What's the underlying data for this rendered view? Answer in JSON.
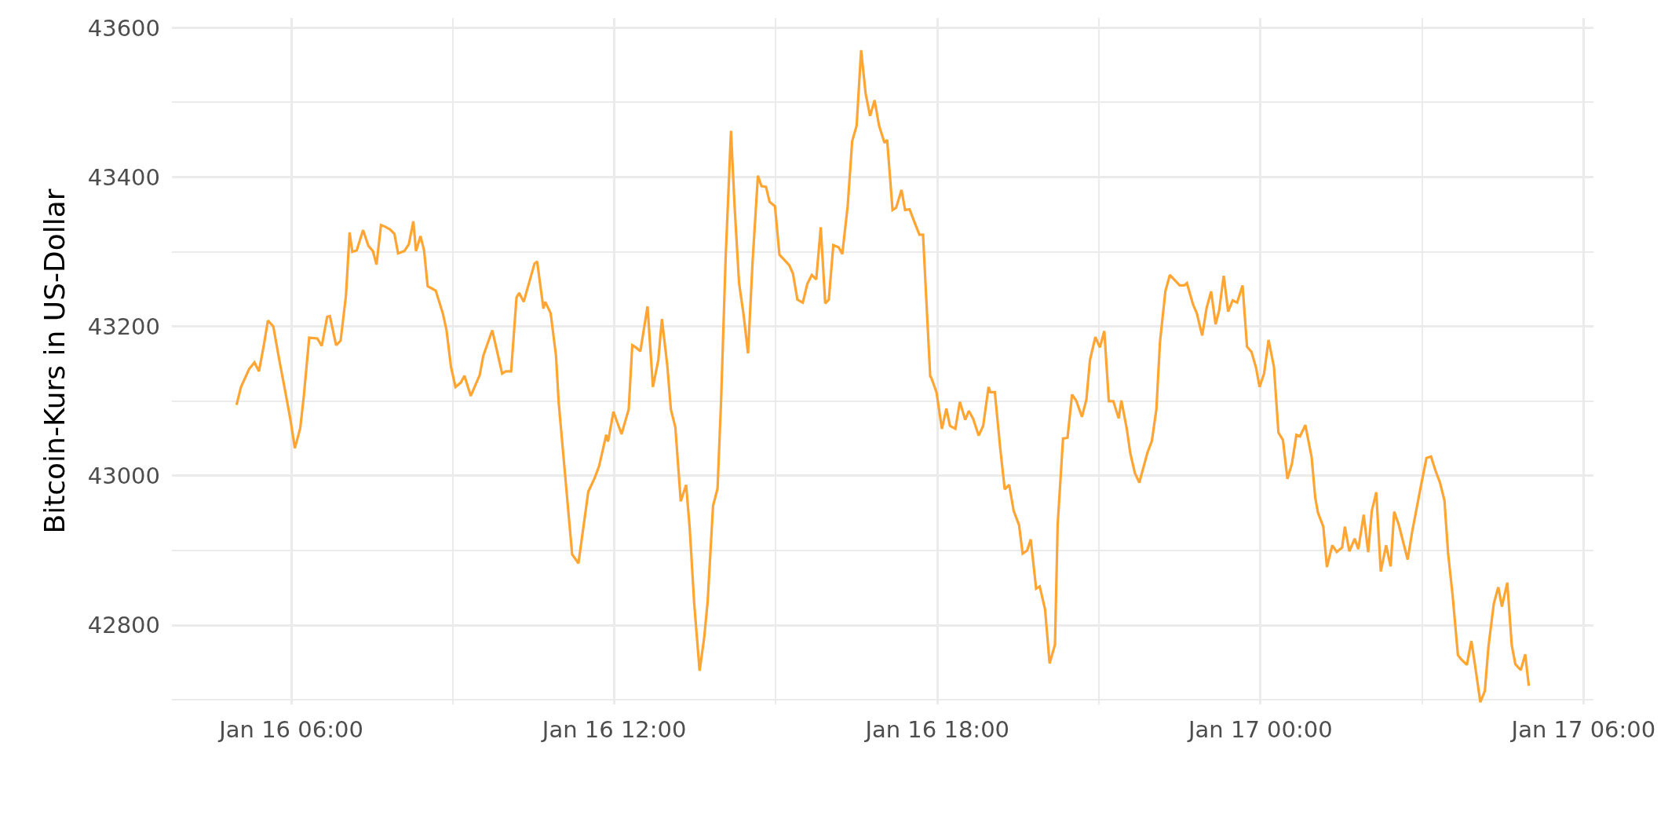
{
  "chart_data": {
    "type": "line",
    "ylabel": "Bitcoin-Kurs in US-Dollar",
    "x": [
      "--01-16T04:59",
      "--01-16T05:04",
      "--01-16T05:13",
      "--01-16T05:19",
      "--01-16T05:24",
      "--01-16T05:29",
      "--01-16T05:34",
      "--01-16T05:40",
      "--01-16T05:47",
      "--01-16T05:53",
      "--01-16T05:59",
      "--01-16T06:04",
      "--01-16T06:10",
      "--01-16T06:14",
      "--01-16T06:20",
      "--01-16T06:29",
      "--01-16T06:34",
      "--01-16T06:40",
      "--01-16T06:43",
      "--01-16T06:50",
      "--01-16T06:55",
      "--01-16T07:01",
      "--01-16T07:05",
      "--01-16T07:08",
      "--01-16T07:13",
      "--01-16T07:20",
      "--01-16T07:26",
      "--01-16T07:31",
      "--01-16T07:35",
      "--01-16T07:40",
      "--01-16T07:44",
      "--01-16T07:50",
      "--01-16T07:55",
      "--01-16T07:59",
      "--01-16T08:06",
      "--01-16T08:11",
      "--01-16T08:16",
      "--01-16T08:19",
      "--01-16T08:24",
      "--01-16T08:28",
      "--01-16T08:32",
      "--01-16T08:41",
      "--01-16T08:49",
      "--01-16T08:53",
      "--01-16T08:58",
      "--01-16T09:03",
      "--01-16T09:09",
      "--01-16T09:13",
      "--01-16T09:20",
      "--01-16T09:30",
      "--01-16T09:34",
      "--01-16T09:44",
      "--01-16T09:55",
      "--01-16T09:59",
      "--01-16T10:05",
      "--01-16T10:11",
      "--01-16T10:14",
      "--01-16T10:19",
      "--01-16T10:31",
      "--01-16T10:34",
      "--01-16T10:41",
      "--01-16T10:43",
      "--01-16T10:49",
      "--01-16T10:55",
      "--01-16T10:58",
      "--01-16T11:13",
      "--01-16T11:20",
      "--01-16T11:31",
      "--01-16T11:38",
      "--01-16T11:43",
      "--01-16T11:51",
      "--01-16T11:53",
      "--01-16T11:59",
      "--01-16T12:08",
      "--01-16T12:16",
      "--01-16T12:20",
      "--01-16T12:24",
      "--01-16T12:29",
      "--01-16T12:37",
      "--01-16T12:43",
      "--01-16T12:49",
      "--01-16T12:53",
      "--01-16T12:59",
      "--01-16T13:03",
      "--01-16T13:08",
      "--01-16T13:14",
      "--01-16T13:20",
      "--01-16T13:24",
      "--01-16T13:29",
      "--01-16T13:35",
      "--01-16T13:40",
      "--01-16T13:44",
      "--01-16T13:50",
      "--01-16T13:55",
      "--01-16T13:59",
      "--01-16T14:04",
      "--01-16T14:10",
      "--01-16T14:14",
      "--01-16T14:19",
      "--01-16T14:24",
      "--01-16T14:29",
      "--01-16T14:34",
      "--01-16T14:40",
      "--01-16T14:44",
      "--01-16T14:49",
      "--01-16T14:53",
      "--01-16T14:59",
      "--01-16T15:04",
      "--01-16T15:08",
      "--01-16T15:15",
      "--01-16T15:19",
      "--01-16T15:24",
      "--01-16T15:30",
      "--01-16T15:35",
      "--01-16T15:40",
      "--01-16T15:45",
      "--01-16T15:50",
      "--01-16T15:55",
      "--01-16T15:59",
      "--01-16T16:04",
      "--01-16T16:10",
      "--01-16T16:14",
      "--01-16T16:20",
      "--01-16T16:25",
      "--01-16T16:30",
      "--01-16T16:35",
      "--01-16T16:40",
      "--01-16T16:45",
      "--01-16T16:50",
      "--01-16T16:55",
      "--01-16T17:01",
      "--01-16T17:04",
      "--01-16T17:10",
      "--01-16T17:14",
      "--01-16T17:20",
      "--01-16T17:24",
      "--01-16T17:29",
      "--01-16T17:34",
      "--01-16T17:40",
      "--01-16T17:44",
      "--01-16T17:47",
      "--01-16T17:52",
      "--01-16T17:53",
      "--01-16T17:59",
      "--01-16T18:05",
      "--01-16T18:10",
      "--01-16T18:14",
      "--01-16T18:20",
      "--01-16T18:25",
      "--01-16T18:31",
      "--01-16T18:35",
      "--01-16T18:40",
      "--01-16T18:46",
      "--01-16T18:51",
      "--01-16T18:57",
      "--01-16T18:59",
      "--01-16T19:04",
      "--01-16T19:10",
      "--01-16T19:15",
      "--01-16T19:20",
      "--01-16T19:25",
      "--01-16T19:31",
      "--01-16T19:35",
      "--01-16T19:40",
      "--01-16T19:44",
      "--01-16T19:50",
      "--01-16T19:54",
      "--01-16T20:00",
      "--01-16T20:05",
      "--01-16T20:11",
      "--01-16T20:14",
      "--01-16T20:20",
      "--01-16T20:25",
      "--01-16T20:30",
      "--01-16T20:35",
      "--01-16T20:41",
      "--01-16T20:46",
      "--01-16T20:50",
      "--01-16T20:56",
      "--01-16T21:01",
      "--01-16T21:06",
      "--01-16T21:11",
      "--01-16T21:16",
      "--01-16T21:22",
      "--01-16T21:25",
      "--01-16T21:31",
      "--01-16T21:35",
      "--01-16T21:40",
      "--01-16T21:45",
      "--01-16T21:54",
      "--01-16T21:59",
      "--01-16T22:04",
      "--01-16T22:08",
      "--01-16T22:14",
      "--01-16T22:19",
      "--01-16T22:30",
      "--01-16T22:35",
      "--01-16T22:38",
      "--01-16T22:45",
      "--01-16T22:49",
      "--01-16T22:55",
      "--01-16T23:00",
      "--01-16T23:05",
      "--01-16T23:10",
      "--01-16T23:14",
      "--01-16T23:19",
      "--01-16T23:24",
      "--01-16T23:29",
      "--01-16T23:34",
      "--01-16T23:40",
      "--01-16T23:45",
      "--01-16T23:50",
      "--01-16T23:55",
      "--01-16T23:59",
      "--01-17T00:04",
      "--01-17T00:09",
      "--01-17T00:15",
      "--01-17T00:20",
      "--01-17T00:25",
      "--01-17T00:30",
      "--01-17T00:35",
      "--01-17T00:40",
      "--01-17T00:44",
      "--01-17T00:50",
      "--01-17T00:57",
      "--01-17T01:01",
      "--01-17T01:04",
      "--01-17T01:10",
      "--01-17T01:14",
      "--01-17T01:20",
      "--01-17T01:25",
      "--01-17T01:31",
      "--01-17T01:34",
      "--01-17T01:39",
      "--01-17T01:45",
      "--01-17T01:49",
      "--01-17T01:55",
      "--01-17T02:00",
      "--01-17T02:04",
      "--01-17T02:09",
      "--01-17T02:14",
      "--01-17T02:20",
      "--01-17T02:25",
      "--01-17T02:29",
      "--01-17T02:34",
      "--01-17T02:44",
      "--01-17T02:49",
      "--01-17T02:59",
      "--01-17T03:05",
      "--01-17T03:10",
      "--01-17T03:15",
      "--01-17T03:20",
      "--01-17T03:25",
      "--01-17T03:29",
      "--01-17T03:34",
      "--01-17T03:40",
      "--01-17T03:44",
      "--01-17T03:50",
      "--01-17T03:55",
      "--01-17T03:59",
      "--01-17T04:05",
      "--01-17T04:10",
      "--01-17T04:14",
      "--01-17T04:20",
      "--01-17T04:25",
      "--01-17T04:29",
      "--01-17T04:35",
      "--01-17T04:40",
      "--01-17T04:44",
      "--01-17T04:50",
      "--01-17T04:55",
      "--01-17T04:59"
    ],
    "series": [
      {
        "color": "#ffa533",
        "values": [
          43095,
          43119,
          43143,
          43152,
          43140,
          43172,
          43208,
          43200,
          43153,
          43115,
          43076,
          43037,
          43064,
          43107,
          43185,
          43184,
          43174,
          43213,
          43214,
          43175,
          43181,
          43242,
          43326,
          43300,
          43302,
          43329,
          43308,
          43301,
          43283,
          43336,
          43334,
          43330,
          43324,
          43298,
          43301,
          43310,
          43341,
          43301,
          43321,
          43302,
          43254,
          43248,
          43217,
          43195,
          43146,
          43119,
          43125,
          43134,
          43107,
          43135,
          43161,
          43195,
          43137,
          43140,
          43140,
          43239,
          43245,
          43233,
          43284,
          43287,
          43224,
          43233,
          43218,
          43161,
          43098,
          42895,
          42883,
          42979,
          42997,
          43013,
          43055,
          43046,
          43086,
          43056,
          43089,
          43175,
          43172,
          43167,
          43227,
          43119,
          43155,
          43210,
          43148,
          43089,
          43065,
          42966,
          42988,
          42930,
          42829,
          42739,
          42782,
          42832,
          42960,
          42983,
          43102,
          43291,
          43462,
          43361,
          43258,
          43216,
          43164,
          43286,
          43402,
          43388,
          43387,
          43367,
          43361,
          43296,
          43291,
          43282,
          43271,
          43236,
          43232,
          43257,
          43269,
          43263,
          43333,
          43231,
          43236,
          43309,
          43306,
          43297,
          43361,
          43448,
          43469,
          43570,
          43512,
          43482,
          43503,
          43469,
          43446,
          43450,
          43356,
          43359,
          43383,
          43356,
          43357,
          43341,
          43323,
          43323,
          43251,
          43133,
          43132,
          43112,
          43063,
          43090,
          43067,
          43063,
          43099,
          43075,
          43087,
          43076,
          43054,
          43067,
          43119,
          43112,
          43112,
          43037,
          42982,
          42988,
          42953,
          42934,
          42896,
          42900,
          42915,
          42849,
          42852,
          42821,
          42749,
          42774,
          42935,
          43050,
          43051,
          43109,
          43100,
          43079,
          43102,
          43155,
          43186,
          43172,
          43194,
          43100,
          43100,
          43077,
          43101,
          43063,
          43030,
          43004,
          42991,
          43031,
          43047,
          43089,
          43179,
          43247,
          43269,
          43255,
          43255,
          43258,
          43229,
          43218,
          43188,
          43225,
          43247,
          43203,
          43222,
          43268,
          43220,
          43235,
          43232,
          43255,
          43173,
          43166,
          43145,
          43119,
          43137,
          43182,
          43146,
          43058,
          43048,
          42996,
          43016,
          43055,
          43053,
          43068,
          43025,
          42971,
          42951,
          42932,
          42878,
          42907,
          42898,
          42904,
          42932,
          42899,
          42916,
          42902,
          42948,
          42898,
          42953,
          42978,
          42872,
          42907,
          42879,
          42952,
          42935,
          42888,
          42925,
          42988,
          43024,
          43026,
          43007,
          42991,
          42967,
          42897,
          42841,
          42760,
          42754,
          42747,
          42779,
          42747,
          42697,
          42712,
          42771,
          42829,
          42851,
          42825,
          42857,
          42773,
          42748,
          42740,
          42761,
          42719
        ]
      }
    ],
    "xlim": [
      "--01-16T03:47",
      "--01-17T06:11"
    ],
    "xticks": [
      {
        "value": "--01-16T06:00",
        "label": "Jan 16 06:00"
      },
      {
        "value": "--01-16T09:00",
        "label": null
      },
      {
        "value": "--01-16T12:00",
        "label": "Jan 16 12:00"
      },
      {
        "value": "--01-16T15:00",
        "label": null
      },
      {
        "value": "--01-16T18:00",
        "label": "Jan 16 18:00"
      },
      {
        "value": "--01-16T21:00",
        "label": null
      },
      {
        "value": "--01-17T00:00",
        "label": "Jan 17 00:00"
      },
      {
        "value": "--01-17T03:00",
        "label": null
      },
      {
        "value": "--01-17T06:00",
        "label": "Jan 17 06:00"
      }
    ],
    "ylim": [
      42694,
      43613
    ],
    "yticks": [
      {
        "value": 42700,
        "label": null
      },
      42800,
      {
        "value": 42900,
        "label": null
      },
      43000,
      {
        "value": 43100,
        "label": null
      },
      43200,
      {
        "value": 43300,
        "label": null
      },
      43400,
      {
        "value": 43500,
        "label": null
      },
      43600
    ],
    "grid": true,
    "marker": "none",
    "line_style": "solid"
  }
}
